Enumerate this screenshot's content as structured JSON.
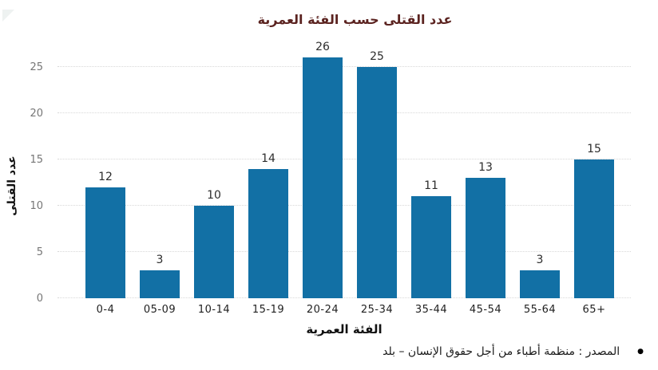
{
  "chart_data": {
    "type": "bar",
    "title": "عدد القتلى حسب الفئة العمرية",
    "xlabel": "الفئة العمرية",
    "ylabel": "عدد القتلى",
    "categories": [
      "0-4",
      "05-09",
      "10-14",
      "15-19",
      "20-24",
      "25-34",
      "35-44",
      "45-54",
      "55-64",
      "65+"
    ],
    "values": [
      12,
      3,
      10,
      14,
      26,
      25,
      11,
      13,
      3,
      15
    ],
    "ylim": [
      0,
      25
    ],
    "yticks": [
      0,
      5,
      10,
      15,
      20,
      25
    ],
    "legend": "none",
    "grid": "horizontal-dotted",
    "colors": {
      "bar": "#1270a5",
      "title": "#5b2320",
      "y_tick": "#767676",
      "x_tick": "#1f1f1f",
      "value_label": "#2d2d2d",
      "gridline": "#d8d8d8"
    }
  },
  "footer": {
    "bullet": "●",
    "source_text": "المصدر : منظمة أطباء من أجل حقوق الإنسان – بلد"
  }
}
